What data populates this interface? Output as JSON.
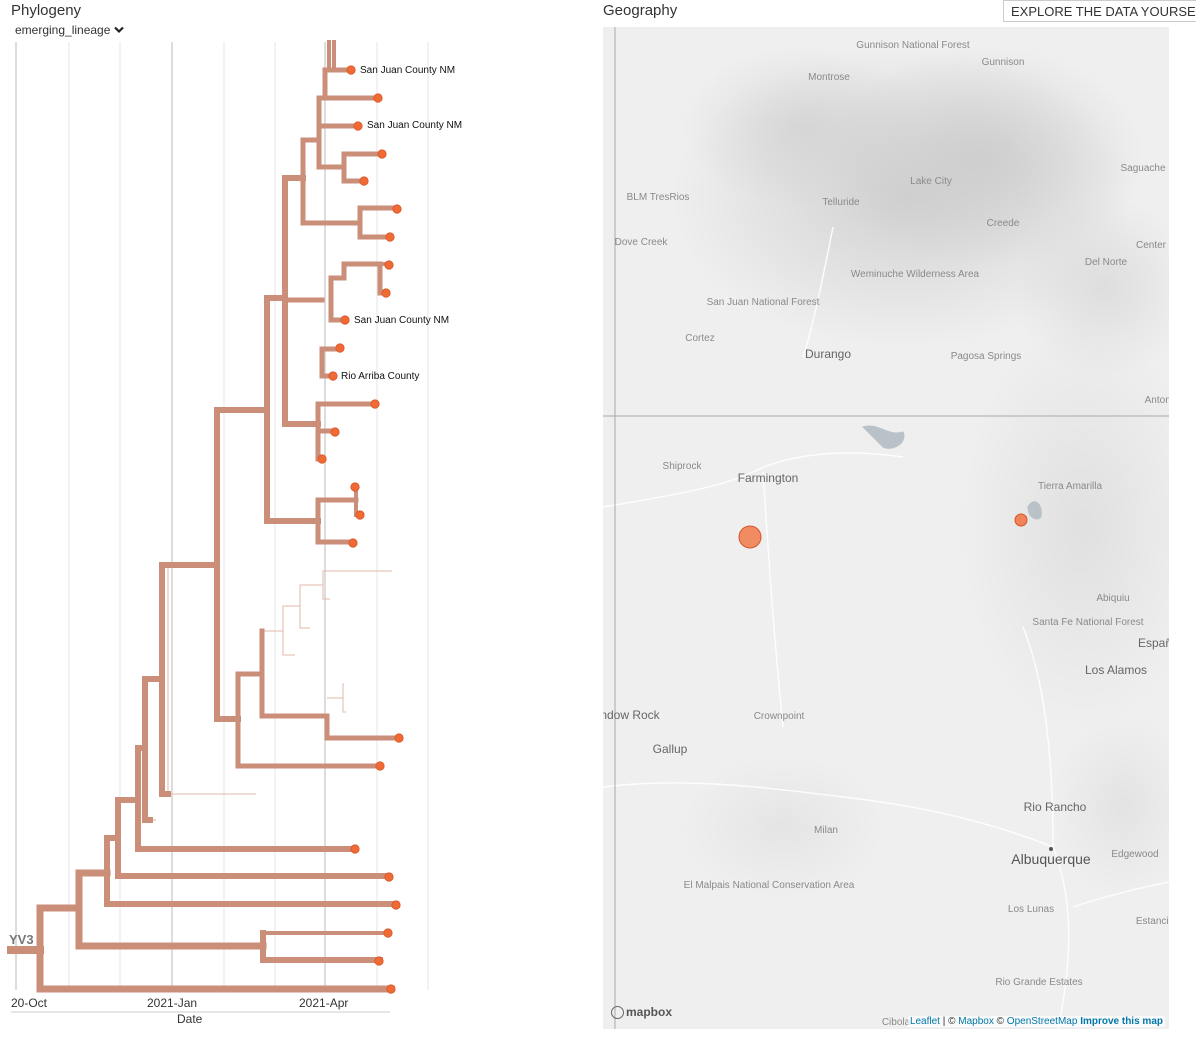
{
  "phylogeny": {
    "title": "Phylogeny",
    "color_by": "emerging_lineage",
    "root_label": "YV3",
    "axis_label": "Date",
    "axis_ticks": [
      "20-Oct",
      "2021-Jan",
      "2021-Apr"
    ],
    "tip_labels": [
      "San Juan County NM",
      "San Juan County NM",
      "San Juan County NM",
      "Rio Arriba County"
    ],
    "branch_color": "#cb8e78",
    "tip_color": "#f06a33"
  },
  "geography": {
    "title": "Geography",
    "explore_button": "EXPLORE THE DATA YOURSE",
    "places": [
      "Gunnison National Forest",
      "Gunnison",
      "Montrose",
      "Saguache",
      "BLM TresRios",
      "Lake City",
      "Telluride",
      "Dove Creek",
      "Creede",
      "Center",
      "Del Norte",
      "Weminuche Wilderness Area",
      "San Juan National Forest",
      "Cortez",
      "Durango",
      "Pagosa Springs",
      "Shiprock",
      "Farmington",
      "Tierra Amarilla",
      "Abiquiu",
      "Santa Fe National Forest",
      "Española",
      "Los Alamos",
      "Window Rock",
      "Crownpoint",
      "Gallup",
      "Rio Rancho",
      "Milan",
      "Albuquerque",
      "Edgewood",
      "El Malpais National Conservation Area",
      "Los Lunas",
      "Estancia",
      "Rio Grande Estates",
      "Cibola",
      "Antonito"
    ],
    "logo": "mapbox",
    "attribution": {
      "leaflet": "Leaflet",
      "mapbox": "Mapbox",
      "osm": "OpenStreetMap",
      "improve": "Improve this map"
    }
  }
}
